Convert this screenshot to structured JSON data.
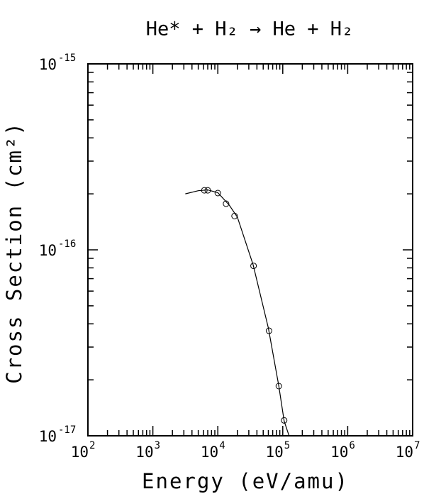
{
  "chart_data": {
    "type": "line",
    "title": "He* + H₂ → He + H₂",
    "x_label": "Energy (eV/amu)",
    "y_label": "Cross Section (cm²)",
    "x_scale": "log",
    "y_scale": "log",
    "minor_ticks": true,
    "xlim": [
      100,
      10000000
    ],
    "ylim": [
      1e-17,
      1e-15
    ],
    "xticks": [
      {
        "value": 100,
        "label": "10",
        "exponent": "2"
      },
      {
        "value": 1000,
        "label": "10",
        "exponent": "3"
      },
      {
        "value": 10000,
        "label": "10",
        "exponent": "4"
      },
      {
        "value": 100000,
        "label": "10",
        "exponent": "5"
      },
      {
        "value": 1000000,
        "label": "10",
        "exponent": "6"
      },
      {
        "value": 10000000,
        "label": "10",
        "exponent": "7"
      }
    ],
    "yticks": [
      {
        "value": 1e-17,
        "label": "10",
        "exponent": "-17"
      },
      {
        "value": 1e-16,
        "label": "10",
        "exponent": "-16"
      },
      {
        "value": 1e-15,
        "label": "10",
        "exponent": "-15"
      }
    ],
    "series": [
      {
        "style": "markers",
        "color": "#000000",
        "x": [
          6200,
          7000,
          10000,
          13400,
          18100,
          35500,
          61400,
          87000,
          105000
        ],
        "values": [
          2.09e-16,
          2.09e-16,
          2.02e-16,
          1.77e-16,
          1.52e-16,
          8.2e-17,
          3.67e-17,
          1.85e-17,
          1.21e-17
        ]
      },
      {
        "style": "line",
        "color": "#000000",
        "x": [
          3160,
          5000,
          7000,
          10000,
          15000,
          20000,
          35000,
          60000,
          87000,
          105000,
          125000
        ],
        "values": [
          2e-16,
          2.08e-16,
          2.1e-16,
          2.03e-16,
          1.74e-16,
          1.5e-16,
          8.3e-17,
          3.8e-17,
          1.85e-17,
          1.2e-17,
          1e-17
        ]
      }
    ]
  }
}
